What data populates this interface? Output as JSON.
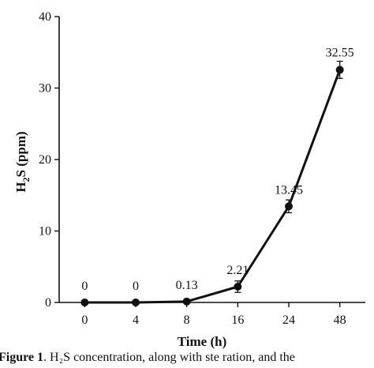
{
  "chart_data": {
    "type": "line",
    "categories": [
      "0",
      "4",
      "8",
      "16",
      "24",
      "48"
    ],
    "series": [
      {
        "values": [
          0,
          0,
          0.13,
          2.21,
          13.45,
          32.55
        ],
        "errors": [
          0,
          0,
          0.1,
          0.8,
          0.9,
          1.2
        ],
        "color": "#111111"
      }
    ],
    "data_labels": [
      "0",
      "0",
      "0.13",
      "2.21",
      "13.45",
      "32.55"
    ],
    "xlabel": "Time (h)",
    "ylabel": {
      "main": "H",
      "sub": "2",
      "rest": "S (ppm)"
    },
    "ylim": [
      0,
      40
    ],
    "yticks": [
      "0",
      "10",
      "20",
      "30",
      "40"
    ],
    "grid": false,
    "legend": "none"
  },
  "caption": {
    "figure": "Figure 1",
    "text": ". H₂S concentration, along with ste ration, and the"
  }
}
